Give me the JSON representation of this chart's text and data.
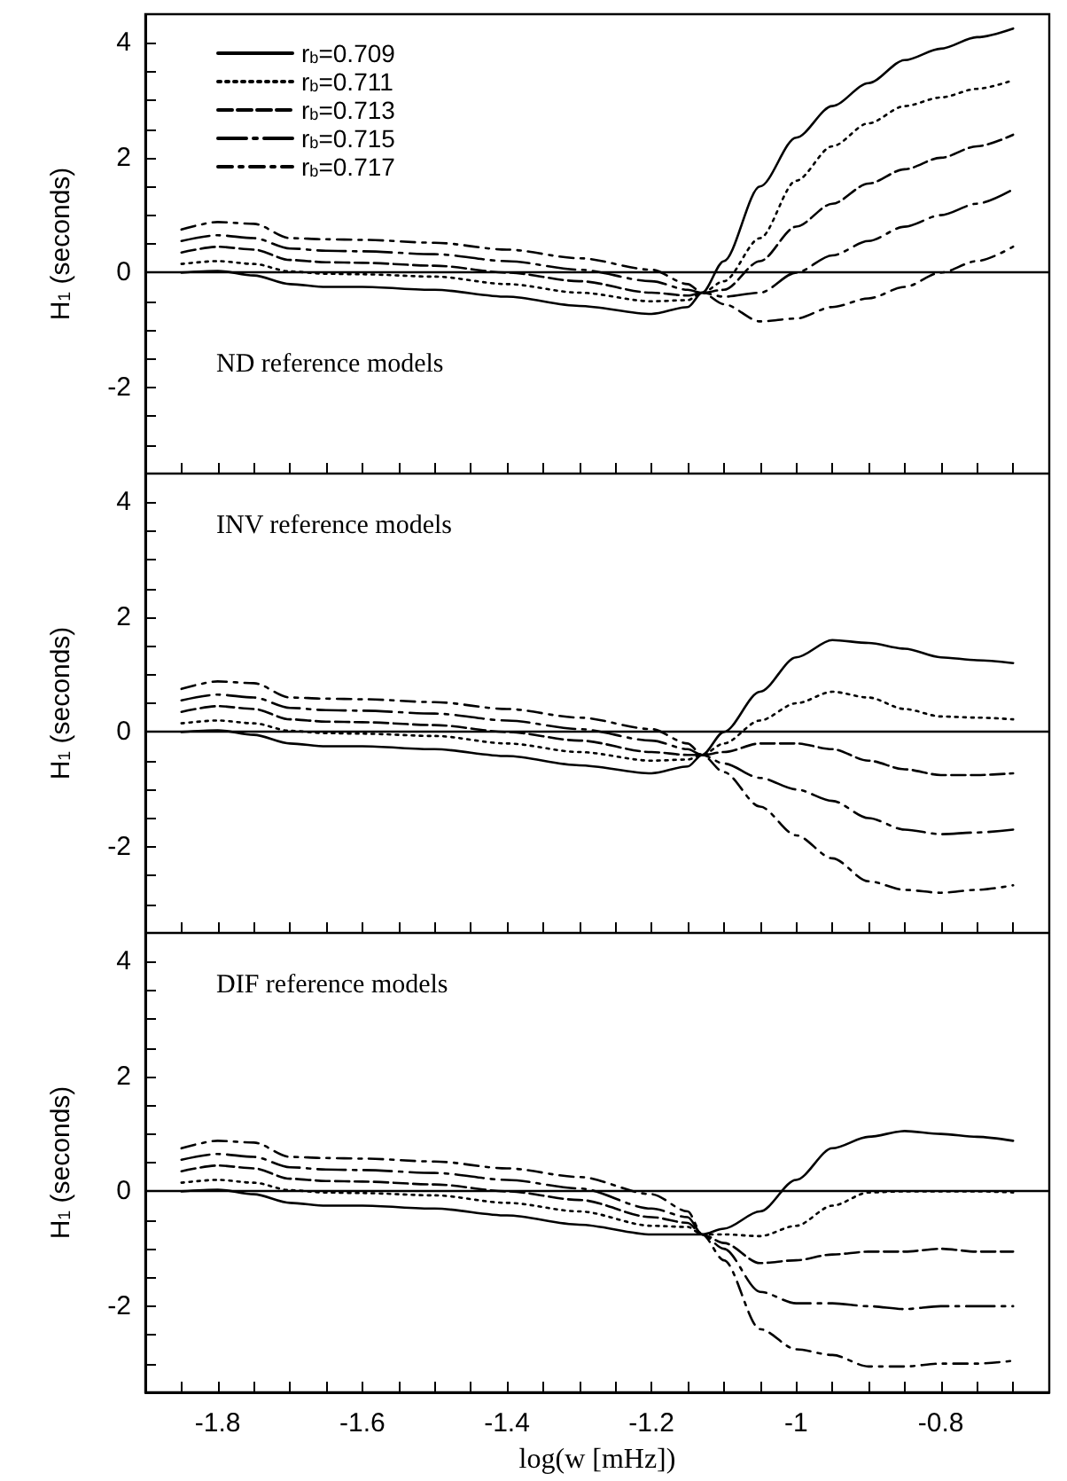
{
  "chart_data": [
    {
      "type": "line",
      "ylabel": "H$_{1}$ (seconds)",
      "annotations": [
        "ND reference models"
      ],
      "legend": "top left",
      "tick_labels": "y",
      "grid": false,
      "xlim": [
        -1.9,
        -0.65
      ],
      "ylim": [
        -3.5,
        4.5
      ],
      "xticks": [
        -1.8,
        -1.6,
        -1.4,
        -1.2,
        -1,
        -0.8,
        {
          "value": -1.85,
          "label": null
        },
        {
          "value": -1.75,
          "label": null
        },
        {
          "value": -1.7,
          "label": null
        },
        {
          "value": -1.65,
          "label": null
        },
        {
          "value": -1.55,
          "label": null
        },
        {
          "value": -1.5,
          "label": null
        },
        {
          "value": -1.45,
          "label": null
        },
        {
          "value": -1.35,
          "label": null
        },
        {
          "value": -1.3,
          "label": null
        },
        {
          "value": -1.25,
          "label": null
        },
        {
          "value": -1.15,
          "label": null
        },
        {
          "value": -1.1,
          "label": null
        },
        {
          "value": -1.05,
          "label": null
        },
        {
          "value": -0.95,
          "label": null
        },
        {
          "value": -0.9,
          "label": null
        },
        {
          "value": -0.85,
          "label": null
        },
        {
          "value": -0.75,
          "label": null
        },
        {
          "value": -0.7,
          "label": null
        }
      ],
      "yticks": [
        -2,
        0,
        2,
        4,
        {
          "value": -3,
          "label": null
        },
        {
          "value": -2.5,
          "label": null
        },
        {
          "value": -1.5,
          "label": null
        },
        {
          "value": -1,
          "label": null
        },
        {
          "value": -0.5,
          "label": null
        },
        {
          "value": 0.5,
          "label": null
        },
        {
          "value": 1,
          "label": null
        },
        {
          "value": 1.5,
          "label": null
        },
        {
          "value": 2.5,
          "label": null
        },
        {
          "value": 3,
          "label": null
        },
        {
          "value": 3.5,
          "label": null
        }
      ],
      "ref_lines": [
        {
          "axis": "y",
          "value": 0,
          "color": "#000000",
          "line_style": "solid"
        }
      ],
      "x": [
        -1.85,
        -1.8,
        -1.75,
        -1.7,
        -1.65,
        -1.6,
        -1.5,
        -1.4,
        -1.3,
        -1.2,
        -1.15,
        -1.13,
        -1.1,
        -1.05,
        -1.0,
        -0.95,
        -0.9,
        -0.85,
        -0.8,
        -0.75,
        -0.7
      ],
      "series": [
        {
          "name": "r$_{b}$=0.709",
          "color": "#000000",
          "line_style": "solid",
          "values": [
            0.0,
            0.03,
            -0.05,
            -0.2,
            -0.25,
            -0.25,
            -0.3,
            -0.42,
            -0.58,
            -0.72,
            -0.6,
            -0.35,
            0.2,
            1.5,
            2.35,
            2.9,
            3.3,
            3.7,
            3.9,
            4.1,
            4.25
          ]
        },
        {
          "name": "r$_{b}$=0.711",
          "color": "#000000",
          "line_style": "dotted",
          "values": [
            0.15,
            0.2,
            0.15,
            0.02,
            -0.02,
            -0.03,
            -0.07,
            -0.2,
            -0.35,
            -0.5,
            -0.48,
            -0.35,
            -0.15,
            0.6,
            1.6,
            2.2,
            2.6,
            2.9,
            3.05,
            3.2,
            3.35
          ]
        },
        {
          "name": "r$_{b}$=0.713",
          "color": "#000000",
          "line_style": "dashed",
          "values": [
            0.35,
            0.45,
            0.4,
            0.22,
            0.18,
            0.17,
            0.12,
            0.0,
            -0.15,
            -0.35,
            -0.4,
            -0.35,
            -0.3,
            0.2,
            0.8,
            1.2,
            1.55,
            1.8,
            2.0,
            2.2,
            2.4
          ]
        },
        {
          "name": "r$_{b}$=0.715",
          "color": "#000000",
          "line_style": "dashed",
          "values": [
            0.55,
            0.65,
            0.6,
            0.42,
            0.38,
            0.37,
            0.32,
            0.2,
            0.05,
            -0.15,
            -0.3,
            -0.35,
            -0.42,
            -0.35,
            0.0,
            0.3,
            0.55,
            0.8,
            1.0,
            1.2,
            1.45
          ]
        },
        {
          "name": "r$_{b}$=0.717",
          "color": "#000000",
          "line_style": "dashed",
          "values": [
            0.75,
            0.88,
            0.85,
            0.6,
            0.58,
            0.57,
            0.52,
            0.4,
            0.25,
            0.05,
            -0.2,
            -0.35,
            -0.55,
            -0.85,
            -0.8,
            -0.6,
            -0.45,
            -0.25,
            0.0,
            0.2,
            0.45
          ]
        }
      ]
    },
    {
      "type": "line",
      "ylabel": "H$_{1}$ (seconds)",
      "annotations": [
        "INV reference models"
      ],
      "tick_labels": "y",
      "grid": false,
      "xlim": [
        -1.9,
        -0.65
      ],
      "ylim": [
        -3.5,
        4.5
      ],
      "xticks": [
        -1.8,
        -1.6,
        -1.4,
        -1.2,
        -1,
        -0.8,
        {
          "value": -1.85,
          "label": null
        },
        {
          "value": -1.75,
          "label": null
        },
        {
          "value": -1.7,
          "label": null
        },
        {
          "value": -1.65,
          "label": null
        },
        {
          "value": -1.55,
          "label": null
        },
        {
          "value": -1.5,
          "label": null
        },
        {
          "value": -1.45,
          "label": null
        },
        {
          "value": -1.35,
          "label": null
        },
        {
          "value": -1.3,
          "label": null
        },
        {
          "value": -1.25,
          "label": null
        },
        {
          "value": -1.15,
          "label": null
        },
        {
          "value": -1.1,
          "label": null
        },
        {
          "value": -1.05,
          "label": null
        },
        {
          "value": -0.95,
          "label": null
        },
        {
          "value": -0.9,
          "label": null
        },
        {
          "value": -0.85,
          "label": null
        },
        {
          "value": -0.75,
          "label": null
        },
        {
          "value": -0.7,
          "label": null
        }
      ],
      "yticks": [
        -2,
        0,
        2,
        4,
        {
          "value": -3,
          "label": null
        },
        {
          "value": -2.5,
          "label": null
        },
        {
          "value": -1.5,
          "label": null
        },
        {
          "value": -1,
          "label": null
        },
        {
          "value": -0.5,
          "label": null
        },
        {
          "value": 0.5,
          "label": null
        },
        {
          "value": 1,
          "label": null
        },
        {
          "value": 1.5,
          "label": null
        },
        {
          "value": 2.5,
          "label": null
        },
        {
          "value": 3,
          "label": null
        },
        {
          "value": 3.5,
          "label": null
        }
      ],
      "ref_lines": [
        {
          "axis": "y",
          "value": 0,
          "color": "#000000",
          "line_style": "solid"
        }
      ],
      "x": [
        -1.85,
        -1.8,
        -1.75,
        -1.7,
        -1.65,
        -1.6,
        -1.5,
        -1.4,
        -1.3,
        -1.2,
        -1.15,
        -1.13,
        -1.1,
        -1.05,
        -1.0,
        -0.95,
        -0.9,
        -0.85,
        -0.8,
        -0.75,
        -0.7
      ],
      "series": [
        {
          "color": "#000000",
          "line_style": "solid",
          "values": [
            0.0,
            0.03,
            -0.05,
            -0.2,
            -0.25,
            -0.25,
            -0.3,
            -0.42,
            -0.58,
            -0.72,
            -0.6,
            -0.4,
            0.0,
            0.7,
            1.3,
            1.6,
            1.55,
            1.45,
            1.3,
            1.25,
            1.2
          ]
        },
        {
          "color": "#000000",
          "line_style": "dotted",
          "values": [
            0.15,
            0.2,
            0.15,
            0.02,
            -0.02,
            -0.03,
            -0.07,
            -0.2,
            -0.35,
            -0.5,
            -0.48,
            -0.4,
            -0.2,
            0.2,
            0.5,
            0.7,
            0.6,
            0.4,
            0.27,
            0.25,
            0.22
          ]
        },
        {
          "color": "#000000",
          "line_style": "dashed",
          "values": [
            0.35,
            0.45,
            0.4,
            0.22,
            0.18,
            0.17,
            0.12,
            0.0,
            -0.15,
            -0.35,
            -0.4,
            -0.4,
            -0.35,
            -0.2,
            -0.2,
            -0.3,
            -0.5,
            -0.65,
            -0.75,
            -0.75,
            -0.72
          ]
        },
        {
          "color": "#000000",
          "line_style": "dashed",
          "values": [
            0.55,
            0.65,
            0.6,
            0.42,
            0.38,
            0.37,
            0.32,
            0.2,
            0.05,
            -0.15,
            -0.3,
            -0.4,
            -0.55,
            -0.8,
            -1.0,
            -1.2,
            -1.5,
            -1.7,
            -1.78,
            -1.75,
            -1.7
          ]
        },
        {
          "color": "#000000",
          "line_style": "dashed",
          "values": [
            0.75,
            0.88,
            0.85,
            0.6,
            0.58,
            0.57,
            0.52,
            0.4,
            0.25,
            0.05,
            -0.2,
            -0.4,
            -0.7,
            -1.3,
            -1.8,
            -2.2,
            -2.6,
            -2.75,
            -2.8,
            -2.75,
            -2.67
          ]
        }
      ]
    },
    {
      "type": "line",
      "xlabel": "log(w [mHz])",
      "ylabel": "H$_{1}$ (seconds)",
      "annotations": [
        "DIF reference models"
      ],
      "grid": false,
      "xlim": [
        -1.9,
        -0.65
      ],
      "ylim": [
        -3.5,
        4.5
      ],
      "xticks": [
        -1.8,
        -1.6,
        -1.4,
        -1.2,
        -1,
        -0.8,
        {
          "value": -1.85,
          "label": null
        },
        {
          "value": -1.75,
          "label": null
        },
        {
          "value": -1.7,
          "label": null
        },
        {
          "value": -1.65,
          "label": null
        },
        {
          "value": -1.55,
          "label": null
        },
        {
          "value": -1.5,
          "label": null
        },
        {
          "value": -1.45,
          "label": null
        },
        {
          "value": -1.35,
          "label": null
        },
        {
          "value": -1.3,
          "label": null
        },
        {
          "value": -1.25,
          "label": null
        },
        {
          "value": -1.15,
          "label": null
        },
        {
          "value": -1.1,
          "label": null
        },
        {
          "value": -1.05,
          "label": null
        },
        {
          "value": -0.95,
          "label": null
        },
        {
          "value": -0.9,
          "label": null
        },
        {
          "value": -0.85,
          "label": null
        },
        {
          "value": -0.75,
          "label": null
        },
        {
          "value": -0.7,
          "label": null
        }
      ],
      "yticks": [
        -2,
        0,
        2,
        4,
        {
          "value": -3,
          "label": null
        },
        {
          "value": -2.5,
          "label": null
        },
        {
          "value": -1.5,
          "label": null
        },
        {
          "value": -1,
          "label": null
        },
        {
          "value": -0.5,
          "label": null
        },
        {
          "value": 0.5,
          "label": null
        },
        {
          "value": 1,
          "label": null
        },
        {
          "value": 1.5,
          "label": null
        },
        {
          "value": 2.5,
          "label": null
        },
        {
          "value": 3,
          "label": null
        },
        {
          "value": 3.5,
          "label": null
        }
      ],
      "ref_lines": [
        {
          "axis": "y",
          "value": 0,
          "color": "#000000",
          "line_style": "solid"
        }
      ],
      "x": [
        -1.85,
        -1.8,
        -1.75,
        -1.7,
        -1.65,
        -1.6,
        -1.5,
        -1.4,
        -1.3,
        -1.2,
        -1.15,
        -1.13,
        -1.1,
        -1.05,
        -1.0,
        -0.95,
        -0.9,
        -0.85,
        -0.8,
        -0.75,
        -0.7
      ],
      "series": [
        {
          "color": "#000000",
          "line_style": "solid",
          "values": [
            0.0,
            0.03,
            -0.05,
            -0.2,
            -0.25,
            -0.25,
            -0.3,
            -0.42,
            -0.58,
            -0.75,
            -0.75,
            -0.75,
            -0.65,
            -0.35,
            0.2,
            0.75,
            0.95,
            1.05,
            1.0,
            0.95,
            0.88
          ]
        },
        {
          "color": "#000000",
          "line_style": "dotted",
          "values": [
            0.15,
            0.2,
            0.15,
            0.02,
            -0.02,
            -0.03,
            -0.07,
            -0.2,
            -0.35,
            -0.6,
            -0.62,
            -0.75,
            -0.75,
            -0.78,
            -0.6,
            -0.25,
            -0.02,
            0.0,
            0.0,
            0.0,
            -0.02
          ]
        },
        {
          "color": "#000000",
          "line_style": "dashed",
          "values": [
            0.35,
            0.45,
            0.4,
            0.22,
            0.18,
            0.17,
            0.12,
            0.0,
            -0.15,
            -0.45,
            -0.55,
            -0.75,
            -0.9,
            -1.25,
            -1.2,
            -1.1,
            -1.05,
            -1.05,
            -1.0,
            -1.05,
            -1.05
          ]
        },
        {
          "color": "#000000",
          "line_style": "dashed",
          "values": [
            0.55,
            0.65,
            0.6,
            0.42,
            0.38,
            0.37,
            0.32,
            0.2,
            0.05,
            -0.3,
            -0.45,
            -0.75,
            -1.0,
            -1.75,
            -1.95,
            -1.95,
            -2.0,
            -2.05,
            -2.0,
            -2.0,
            -2.0
          ]
        },
        {
          "color": "#000000",
          "line_style": "dashed",
          "values": [
            0.75,
            0.88,
            0.85,
            0.6,
            0.58,
            0.57,
            0.52,
            0.4,
            0.25,
            -0.05,
            -0.35,
            -0.75,
            -1.2,
            -2.4,
            -2.75,
            -2.85,
            -3.05,
            -3.05,
            -3.0,
            -3.0,
            -2.95
          ]
        }
      ]
    }
  ]
}
